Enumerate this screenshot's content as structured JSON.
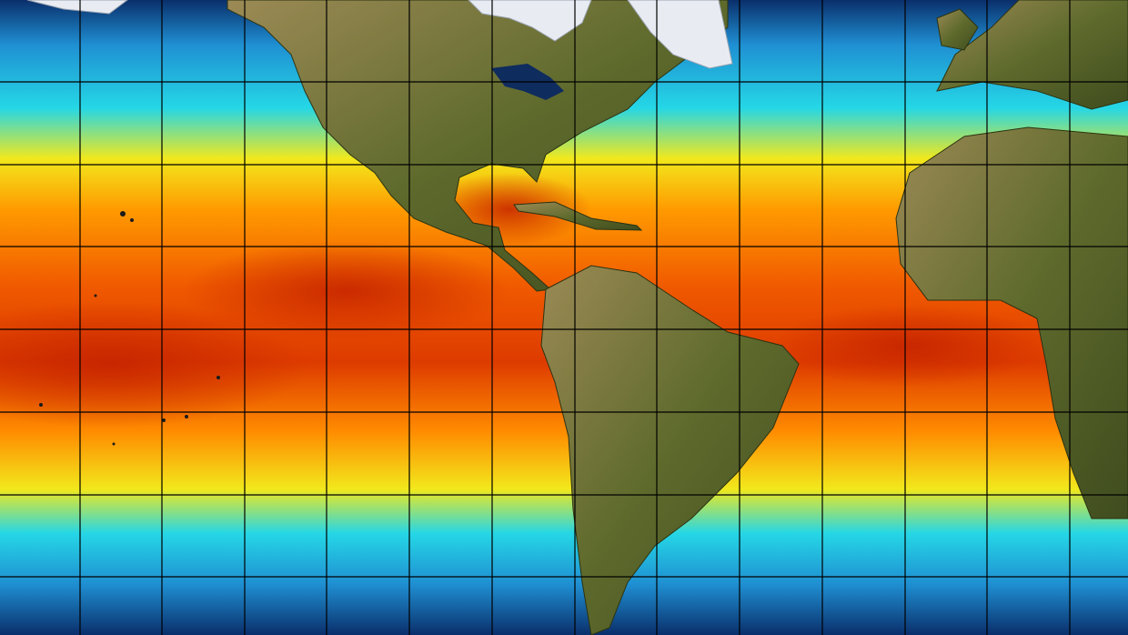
{
  "map": {
    "kind": "sea-surface-temperature",
    "projection": "equirectangular",
    "gridlines": true,
    "land_color": "#4e5a26",
    "land_highlight": "#9c8a55",
    "ice_color": "#e8ecf2",
    "ocean_palette": {
      "coldest": "#0a2f6b",
      "cold": "#1f8fd2",
      "cool": "#25d7e6",
      "mild": "#f2e81c",
      "warm": "#ff8c00",
      "hottest": "#cc2a00"
    }
  }
}
